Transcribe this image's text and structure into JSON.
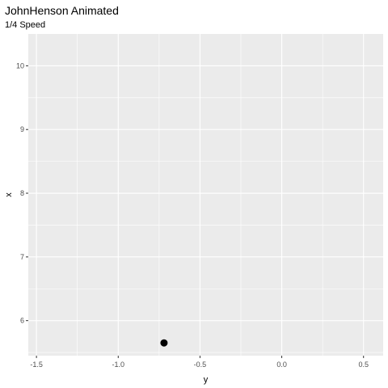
{
  "chart_data": {
    "type": "scatter",
    "title": "JohnHenson Animated",
    "subtitle": "1/4 Speed",
    "xlabel": "y",
    "ylabel": "x",
    "xlim": [
      -1.55,
      0.62
    ],
    "ylim": [
      5.45,
      10.5
    ],
    "x_ticks": [
      -1.5,
      -1.0,
      -0.5,
      0.0,
      0.5
    ],
    "x_tick_labels": [
      "-1.5",
      "-1.0",
      "-0.5",
      "0.0",
      "0.5"
    ],
    "y_ticks": [
      6,
      7,
      8,
      9,
      10
    ],
    "y_tick_labels": [
      "6",
      "7",
      "8",
      "9",
      "10"
    ],
    "grid": true,
    "background": "#ebebeb",
    "gridline_color": "#ffffff",
    "points": [
      {
        "x": -0.72,
        "y": 5.65
      }
    ],
    "point_color": "#000000"
  }
}
